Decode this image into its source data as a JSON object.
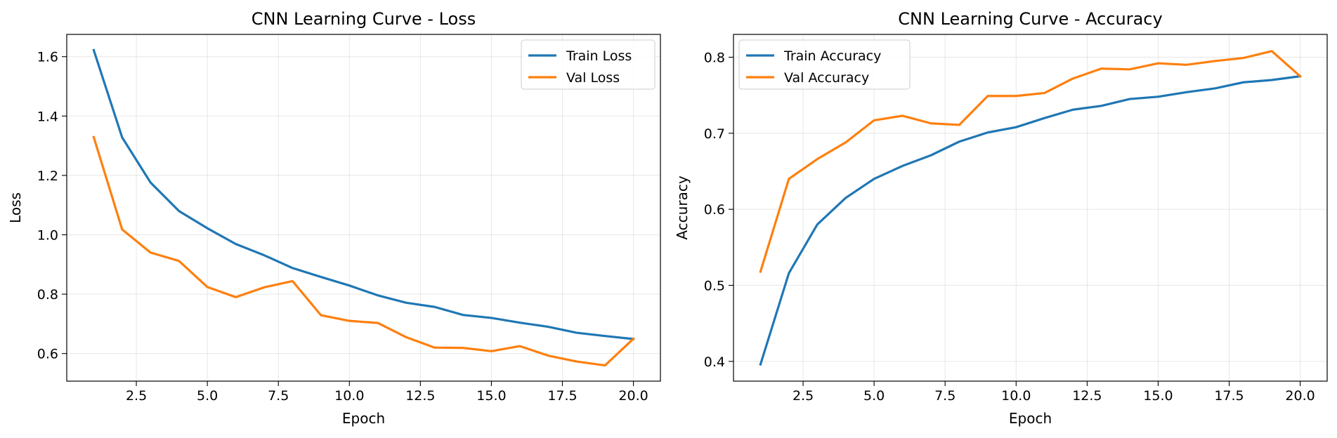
{
  "chart_data": [
    {
      "type": "line",
      "title": "CNN Learning Curve - Loss",
      "xlabel": "Epoch",
      "ylabel": "Loss",
      "xlim": [
        0.05,
        20.95
      ],
      "ylim": [
        0.507,
        1.675
      ],
      "xticks": [
        2.5,
        5.0,
        7.5,
        10.0,
        12.5,
        15.0,
        17.5,
        20.0
      ],
      "xtick_labels": [
        "2.5",
        "5.0",
        "7.5",
        "10.0",
        "12.5",
        "15.0",
        "17.5",
        "20.0"
      ],
      "yticks": [
        0.6,
        0.8,
        1.0,
        1.2,
        1.4,
        1.6
      ],
      "ytick_labels": [
        "0.6",
        "0.8",
        "1.0",
        "1.2",
        "1.4",
        "1.6"
      ],
      "grid": true,
      "legend": "top-right",
      "x": [
        1,
        2,
        3,
        4,
        5,
        6,
        7,
        8,
        9,
        10,
        11,
        12,
        13,
        14,
        15,
        16,
        17,
        18,
        19,
        20
      ],
      "series": [
        {
          "name": "Train Loss",
          "color": "#1f77b4",
          "values": [
            1.622,
            1.328,
            1.176,
            1.08,
            1.022,
            0.969,
            0.931,
            0.888,
            0.858,
            0.829,
            0.796,
            0.771,
            0.757,
            0.73,
            0.72,
            0.704,
            0.69,
            0.67,
            0.659,
            0.649
          ]
        },
        {
          "name": "Val Loss",
          "color": "#ff7f0e",
          "values": [
            1.329,
            1.018,
            0.94,
            0.912,
            0.824,
            0.79,
            0.823,
            0.844,
            0.729,
            0.71,
            0.703,
            0.655,
            0.62,
            0.619,
            0.608,
            0.625,
            0.593,
            0.573,
            0.56,
            0.65
          ]
        }
      ]
    },
    {
      "type": "line",
      "title": "CNN Learning Curve - Accuracy",
      "xlabel": "Epoch",
      "ylabel": "Accuracy",
      "xlim": [
        0.05,
        20.95
      ],
      "ylim": [
        0.374,
        0.83
      ],
      "xticks": [
        2.5,
        5.0,
        7.5,
        10.0,
        12.5,
        15.0,
        17.5,
        20.0
      ],
      "xtick_labels": [
        "2.5",
        "5.0",
        "7.5",
        "10.0",
        "12.5",
        "15.0",
        "17.5",
        "20.0"
      ],
      "yticks": [
        0.4,
        0.5,
        0.6,
        0.7,
        0.8
      ],
      "ytick_labels": [
        "0.4",
        "0.5",
        "0.6",
        "0.7",
        "0.8"
      ],
      "grid": true,
      "legend": "top-left",
      "x": [
        1,
        2,
        3,
        4,
        5,
        6,
        7,
        8,
        9,
        10,
        11,
        12,
        13,
        14,
        15,
        16,
        17,
        18,
        19,
        20
      ],
      "series": [
        {
          "name": "Train Accuracy",
          "color": "#1f77b4",
          "values": [
            0.396,
            0.516,
            0.58,
            0.615,
            0.64,
            0.657,
            0.671,
            0.689,
            0.701,
            0.708,
            0.72,
            0.731,
            0.736,
            0.745,
            0.748,
            0.754,
            0.759,
            0.767,
            0.77,
            0.775
          ]
        },
        {
          "name": "Val Accuracy",
          "color": "#ff7f0e",
          "values": [
            0.518,
            0.64,
            0.666,
            0.688,
            0.717,
            0.723,
            0.713,
            0.711,
            0.749,
            0.749,
            0.753,
            0.772,
            0.785,
            0.784,
            0.792,
            0.79,
            0.795,
            0.799,
            0.808,
            0.775
          ]
        }
      ]
    }
  ]
}
